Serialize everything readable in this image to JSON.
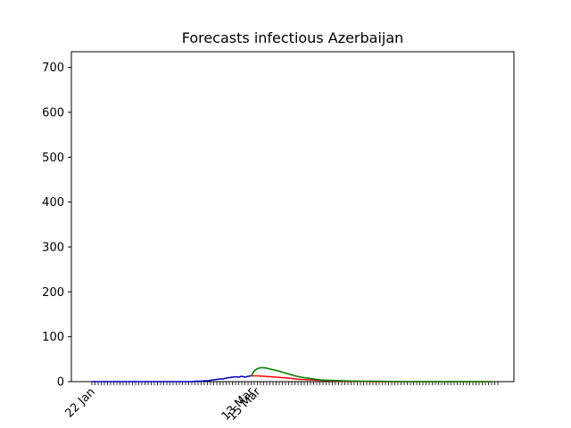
{
  "chart_data": {
    "type": "line",
    "title": "Forecasts infectious Azerbaijan",
    "xlabel": "",
    "ylabel": "",
    "ylim": [
      0,
      735
    ],
    "y_ticks": [
      0,
      100,
      200,
      300,
      400,
      500,
      600,
      700
    ],
    "x_range_days": [
      0,
      130
    ],
    "x_tick_labels": [
      {
        "day": 0,
        "label": "22 Jan"
      },
      {
        "day": 51,
        "label": "13 Mar"
      },
      {
        "day": 53,
        "label": "15 Mar"
      }
    ],
    "grid": false,
    "legend": "none",
    "series": [
      {
        "color": "#0000bf",
        "points": [
          [
            0,
            0
          ],
          [
            10,
            0
          ],
          [
            20,
            0
          ],
          [
            28,
            0
          ],
          [
            30,
            0
          ],
          [
            31,
            0
          ],
          [
            32,
            0
          ],
          [
            33,
            1
          ],
          [
            34,
            1
          ],
          [
            35,
            1
          ],
          [
            36,
            2
          ],
          [
            37,
            2
          ],
          [
            38,
            3
          ],
          [
            39,
            4
          ],
          [
            40,
            5
          ],
          [
            41,
            6
          ],
          [
            42,
            6
          ],
          [
            43,
            8
          ],
          [
            44,
            9
          ],
          [
            45,
            10
          ],
          [
            46,
            11
          ],
          [
            47,
            10
          ],
          [
            48,
            12
          ],
          [
            49,
            10
          ],
          [
            50,
            12
          ],
          [
            51,
            13
          ]
        ]
      },
      {
        "color": "#ff0000",
        "points": [
          [
            51,
            13
          ],
          [
            53,
            13
          ],
          [
            55,
            12
          ],
          [
            57,
            11
          ],
          [
            59,
            10
          ],
          [
            61,
            9
          ],
          [
            63,
            8
          ],
          [
            65,
            6
          ],
          [
            67,
            5
          ],
          [
            70,
            4
          ],
          [
            73,
            3
          ],
          [
            76,
            2
          ],
          [
            80,
            1
          ],
          [
            85,
            1
          ],
          [
            90,
            0
          ],
          [
            100,
            0
          ],
          [
            110,
            0
          ],
          [
            120,
            0
          ],
          [
            128,
            0
          ]
        ]
      },
      {
        "color": "#008000",
        "points": [
          [
            51,
            13
          ],
          [
            52,
            24
          ],
          [
            53,
            29
          ],
          [
            54,
            31
          ],
          [
            55,
            31
          ],
          [
            56,
            30
          ],
          [
            57,
            28
          ],
          [
            59,
            25
          ],
          [
            61,
            21
          ],
          [
            63,
            17
          ],
          [
            65,
            13
          ],
          [
            67,
            10
          ],
          [
            69,
            8
          ],
          [
            71,
            6
          ],
          [
            73,
            4
          ],
          [
            76,
            3
          ],
          [
            80,
            2
          ],
          [
            85,
            1
          ],
          [
            90,
            1
          ],
          [
            100,
            0
          ],
          [
            110,
            0
          ],
          [
            120,
            0
          ],
          [
            128,
            0
          ]
        ]
      }
    ]
  }
}
